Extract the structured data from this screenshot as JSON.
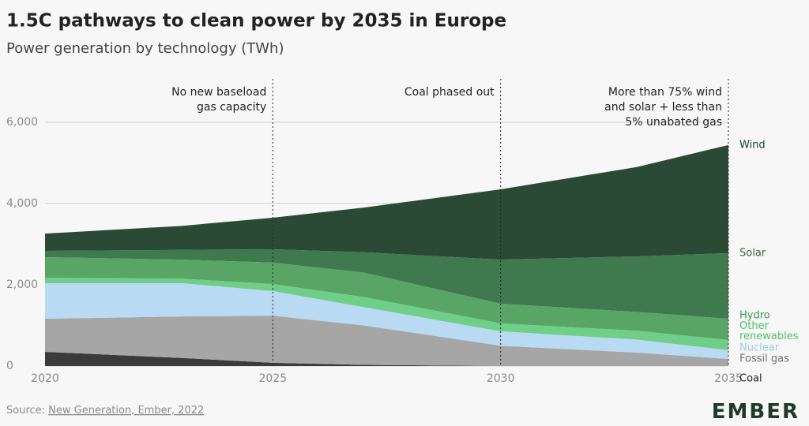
{
  "chart_data": {
    "type": "stacked_area",
    "title": "1.5C pathways to clean power by 2035 in Europe",
    "subtitle": "Power generation by technology (TWh)",
    "source_prefix": "Source:",
    "source_link": "New Generation, Ember, 2022",
    "logo": "EMBER",
    "x": [
      2020,
      2023,
      2025,
      2027,
      2030,
      2033,
      2035
    ],
    "xlim": [
      2020,
      2035
    ],
    "xticks": [
      2020,
      2025,
      2030,
      2035
    ],
    "ylim": [
      0,
      6000
    ],
    "yticks": [
      0,
      {
        "value": 2000,
        "label": "2,000"
      },
      {
        "value": 4000,
        "label": "4,000"
      },
      {
        "value": 6000,
        "label": "6,000"
      }
    ],
    "grid": true,
    "series": [
      {
        "name": "Coal",
        "color": "#3b3b3b",
        "label_color": "#222222",
        "values": [
          350,
          200,
          80,
          30,
          0,
          0,
          0
        ]
      },
      {
        "name": "Fossil gas",
        "color": "#a6a6a6",
        "label_color": "#6f6f6f",
        "values": [
          815,
          1020,
          1160,
          970,
          500,
          330,
          175
        ]
      },
      {
        "name": "Nuclear",
        "color": "#b8daf2",
        "label_color": "#9ccbec",
        "values": [
          875,
          820,
          605,
          450,
          355,
          320,
          215
        ]
      },
      {
        "name": "Other renewables",
        "color": "#6fcf88",
        "label_color": "#4fbf6c",
        "values": [
          135,
          110,
          175,
          250,
          195,
          220,
          250
        ]
      },
      {
        "name": "Hydro",
        "color": "#58a566",
        "label_color": "#3f9a50",
        "values": [
          505,
          470,
          525,
          600,
          485,
          460,
          525
        ]
      },
      {
        "name": "Solar",
        "color": "#3f7a4f",
        "label_color": "#2f6b3e",
        "values": [
          155,
          240,
          330,
          500,
          1085,
          1370,
          1615
        ]
      },
      {
        "name": "Wind",
        "color": "#2b4a36",
        "label_color": "#1f3a29",
        "values": [
          425,
          590,
          775,
          1100,
          1730,
          2200,
          2660
        ]
      }
    ],
    "annotations": [
      {
        "x": 2025,
        "text": [
          "No new baseload",
          "gas capacity"
        ]
      },
      {
        "x": 2030,
        "text": [
          "Coal phased out"
        ]
      },
      {
        "x": 2035,
        "text": [
          "More than 75% wind",
          "and solar + less than",
          "5% unabated gas"
        ]
      }
    ]
  }
}
